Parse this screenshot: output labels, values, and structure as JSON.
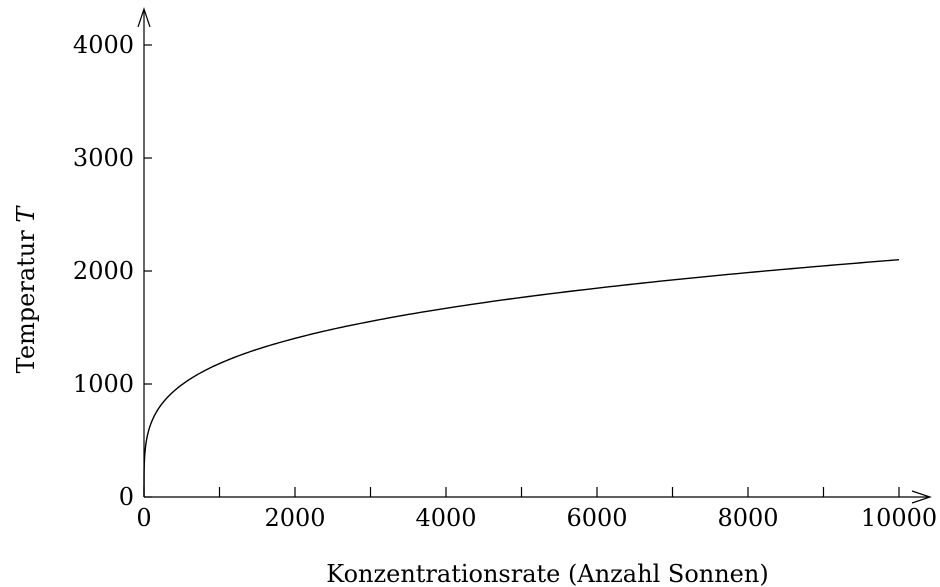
{
  "chart_data": {
    "type": "line",
    "title": "",
    "xlabel": "Konzentrationsrate (Anzahl Sonnen)",
    "ylabel_text": "Temperatur ",
    "ylabel_symbol": "T",
    "xlim": [
      0,
      10000
    ],
    "ylim": [
      0,
      4000
    ],
    "x_ticks": [
      0,
      2000,
      4000,
      6000,
      8000,
      10000
    ],
    "x_tick_labels": [
      "0",
      "2000",
      "4000",
      "6000",
      "8000",
      "10000"
    ],
    "x_minor_ticks": [
      1000,
      3000,
      5000,
      7000,
      9000
    ],
    "y_ticks": [
      0,
      1000,
      2000,
      3000,
      4000
    ],
    "y_tick_labels": [
      "0",
      "1000",
      "2000",
      "3000",
      "4000"
    ],
    "grid": false,
    "legend": "none",
    "series": [
      {
        "x": [
          0,
          10,
          50,
          100,
          200,
          300,
          500,
          750,
          1000,
          1500,
          2000,
          2500,
          3000,
          4000,
          5000,
          6000,
          7000,
          8000,
          9000,
          10000
        ],
        "y": [
          0,
          373,
          558,
          664,
          790,
          874,
          993,
          1099,
          1181,
          1307,
          1404,
          1485,
          1554,
          1670,
          1766,
          1848,
          1921,
          1986,
          2045,
          2100
        ]
      }
    ]
  }
}
